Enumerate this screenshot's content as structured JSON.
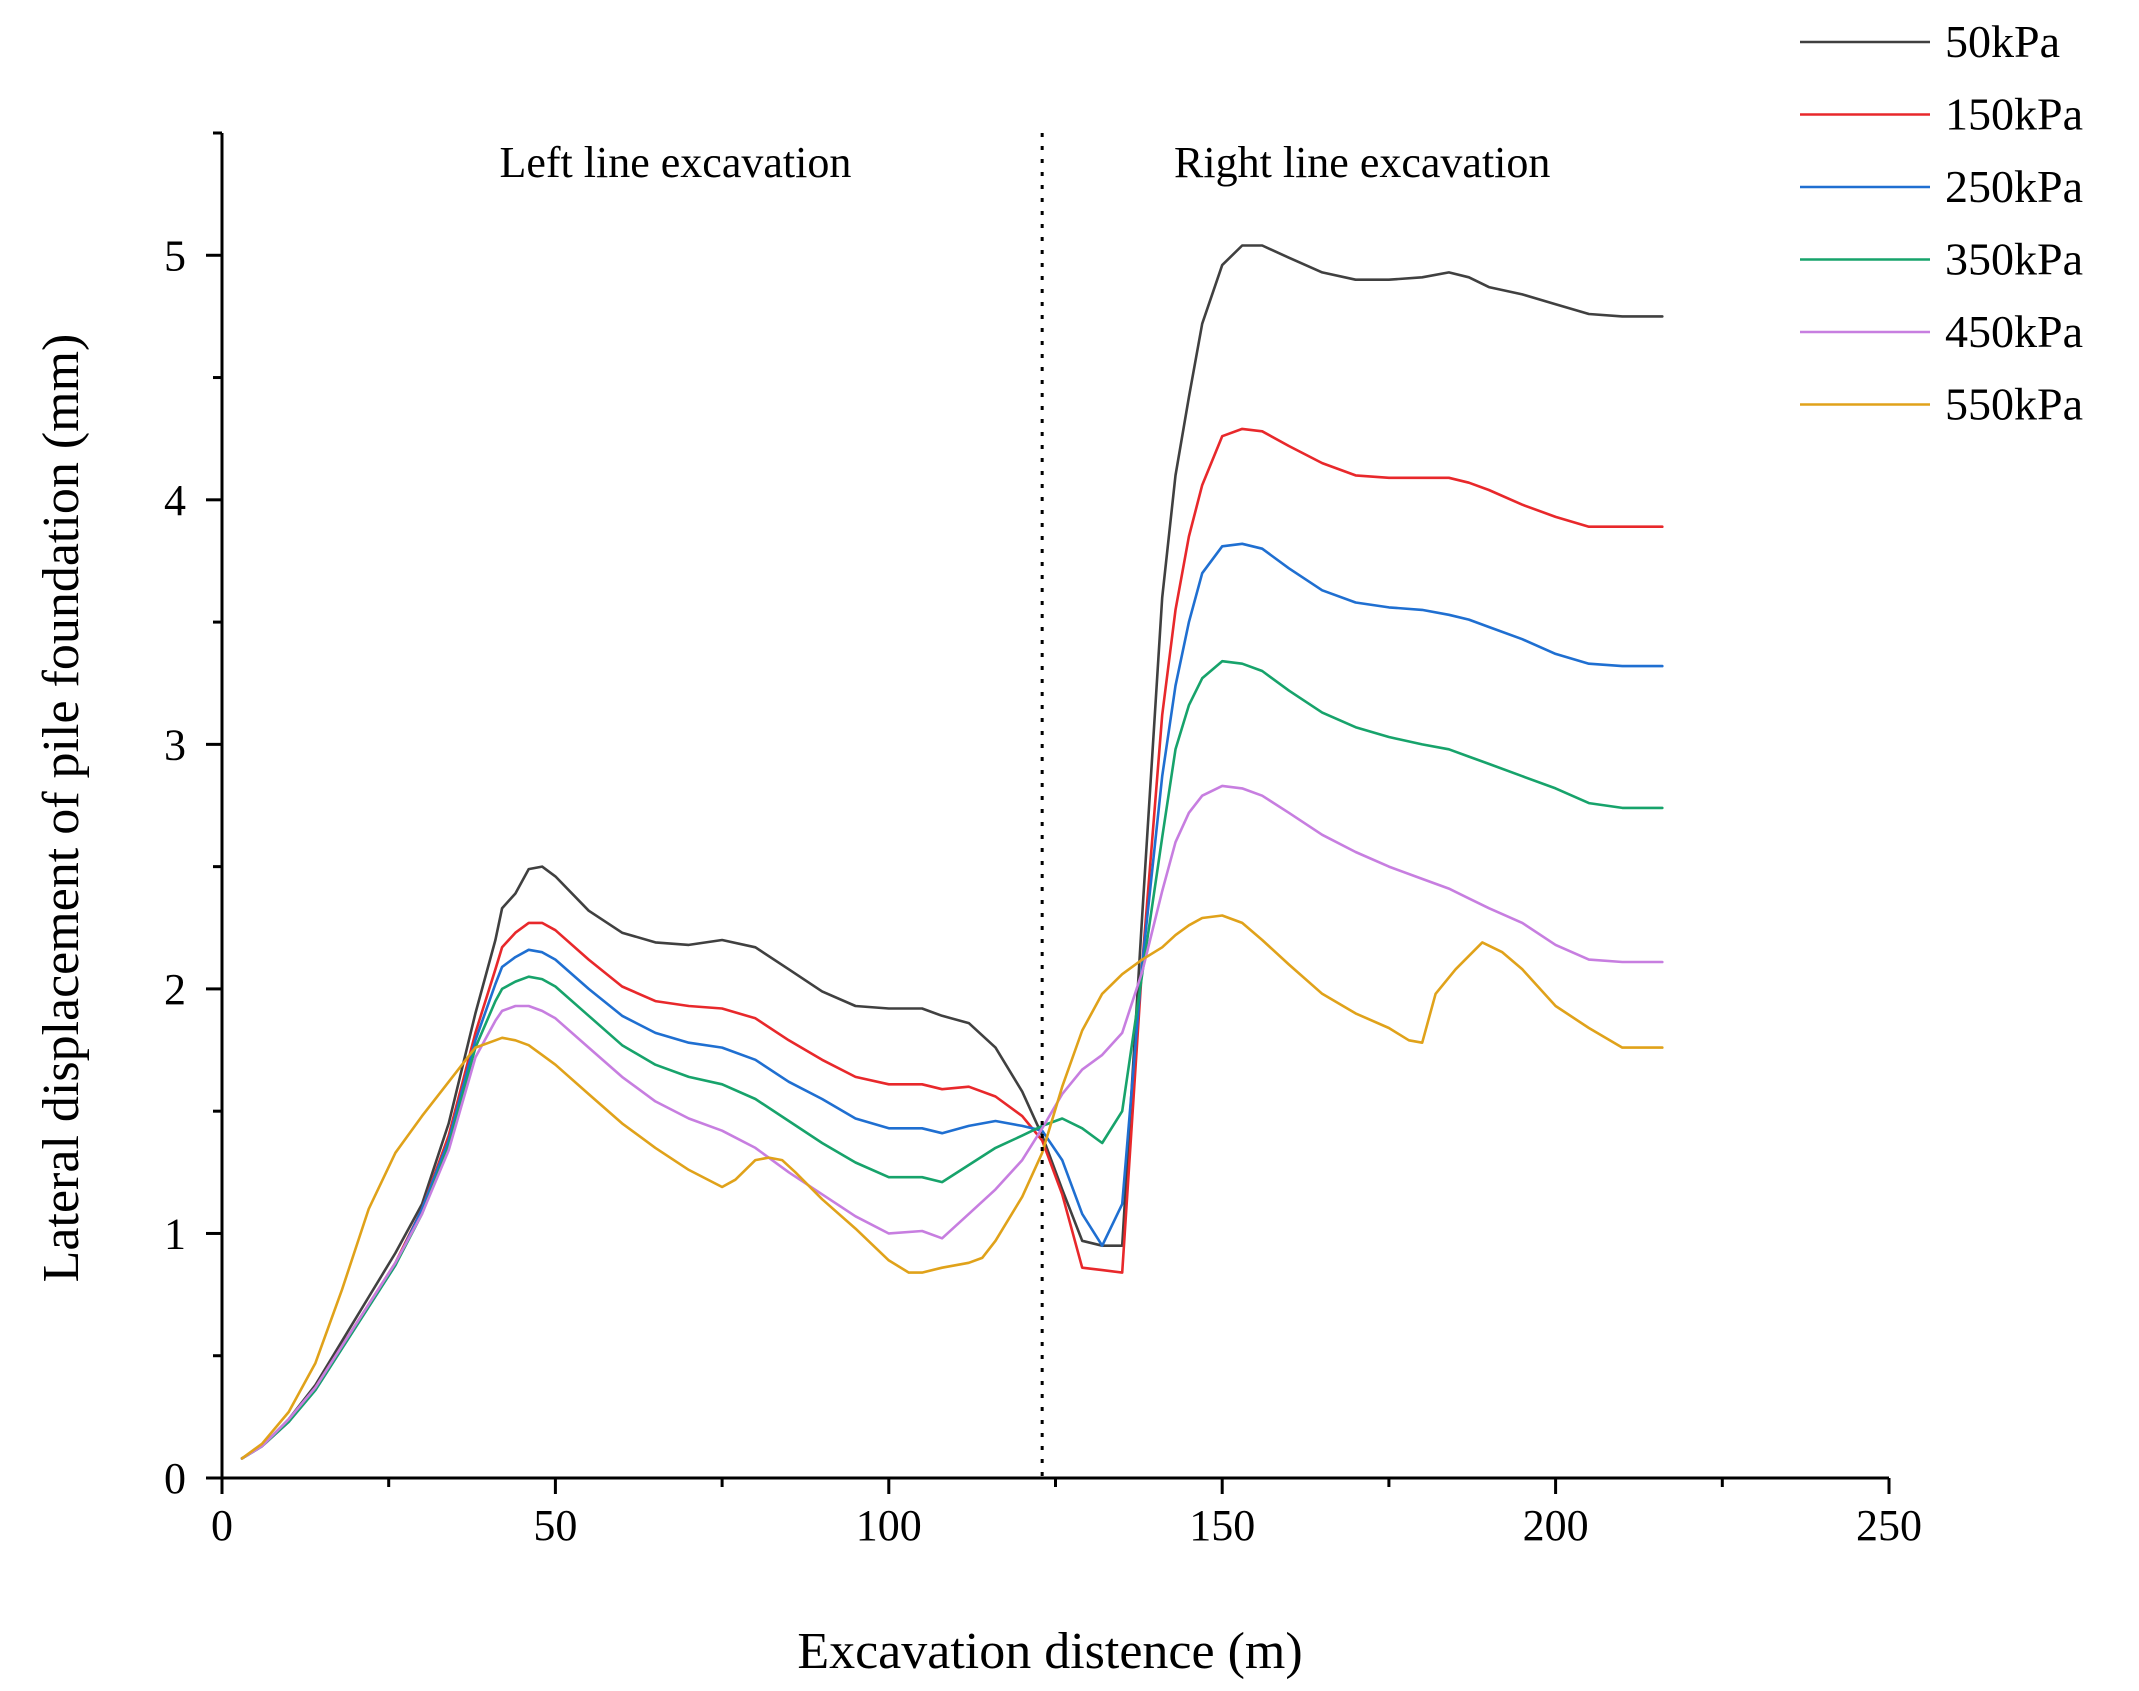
{
  "chart_data": {
    "type": "line",
    "title": "",
    "xlabel": "Excavation distence (m)",
    "ylabel": "Lateral displacement of pile foundation (mm)",
    "xlim": [
      0,
      250
    ],
    "ylim": [
      0,
      5.5
    ],
    "xticks": [
      0,
      50,
      100,
      150,
      200,
      250
    ],
    "xtick_labels": [
      "0",
      "50",
      "100",
      "150",
      "200",
      "250"
    ],
    "yticks": [
      0,
      1,
      2,
      3,
      4,
      5
    ],
    "ytick_labels": [
      "0",
      "1",
      "2",
      "3",
      "4",
      "5"
    ],
    "x_minor_step": 25,
    "y_minor_step": 0.5,
    "divider_x": 123,
    "annotations": [
      {
        "text": "Left line excavation",
        "x": 68,
        "y": 5.32
      },
      {
        "text": "Right line excavation",
        "x": 171,
        "y": 5.32
      }
    ],
    "legend_position": "top-right",
    "series": [
      {
        "name": "50kPa",
        "color": "#404040",
        "x": [
          3,
          6,
          10,
          14,
          18,
          22,
          26,
          30,
          34,
          38,
          41,
          42,
          44,
          46,
          48,
          50,
          55,
          60,
          65,
          70,
          75,
          80,
          85,
          90,
          95,
          100,
          105,
          108,
          112,
          116,
          120,
          123,
          126,
          129,
          132,
          135,
          138,
          141,
          143,
          145,
          147,
          150,
          153,
          156,
          160,
          165,
          170,
          175,
          180,
          184,
          187,
          190,
          195,
          200,
          205,
          210,
          216
        ],
        "y": [
          0.08,
          0.13,
          0.24,
          0.38,
          0.56,
          0.74,
          0.92,
          1.12,
          1.45,
          1.9,
          2.2,
          2.33,
          2.39,
          2.49,
          2.5,
          2.46,
          2.32,
          2.23,
          2.19,
          2.18,
          2.2,
          2.17,
          2.08,
          1.99,
          1.93,
          1.92,
          1.92,
          1.89,
          1.86,
          1.76,
          1.58,
          1.4,
          1.18,
          0.97,
          0.95,
          0.95,
          2.3,
          3.6,
          4.1,
          4.42,
          4.72,
          4.96,
          5.04,
          5.04,
          4.99,
          4.93,
          4.9,
          4.9,
          4.91,
          4.93,
          4.91,
          4.87,
          4.84,
          4.8,
          4.76,
          4.75,
          4.75
        ]
      },
      {
        "name": "150kPa",
        "color": "#e8282b",
        "x": [
          3,
          6,
          10,
          14,
          18,
          22,
          26,
          30,
          34,
          38,
          41,
          42,
          44,
          46,
          48,
          50,
          55,
          60,
          65,
          70,
          75,
          80,
          85,
          90,
          95,
          100,
          105,
          108,
          112,
          116,
          120,
          123,
          126,
          129,
          132,
          135,
          138,
          141,
          143,
          145,
          147,
          150,
          153,
          156,
          160,
          165,
          170,
          175,
          180,
          184,
          187,
          190,
          195,
          200,
          205,
          210,
          216
        ],
        "y": [
          0.08,
          0.13,
          0.23,
          0.37,
          0.54,
          0.71,
          0.88,
          1.1,
          1.4,
          1.82,
          2.08,
          2.17,
          2.23,
          2.27,
          2.27,
          2.24,
          2.12,
          2.01,
          1.95,
          1.93,
          1.92,
          1.88,
          1.79,
          1.71,
          1.64,
          1.61,
          1.61,
          1.59,
          1.6,
          1.56,
          1.48,
          1.38,
          1.16,
          0.86,
          0.85,
          0.84,
          2.1,
          3.12,
          3.55,
          3.85,
          4.06,
          4.26,
          4.29,
          4.28,
          4.22,
          4.15,
          4.1,
          4.09,
          4.09,
          4.09,
          4.07,
          4.04,
          3.98,
          3.93,
          3.89,
          3.89,
          3.89
        ]
      },
      {
        "name": "250kPa",
        "color": "#1f6fd1",
        "x": [
          3,
          6,
          10,
          14,
          18,
          22,
          26,
          30,
          34,
          38,
          41,
          42,
          44,
          46,
          48,
          50,
          55,
          60,
          65,
          70,
          75,
          80,
          85,
          90,
          95,
          100,
          105,
          108,
          112,
          116,
          120,
          123,
          126,
          129,
          132,
          135,
          138,
          141,
          143,
          145,
          147,
          150,
          153,
          156,
          160,
          165,
          170,
          175,
          180,
          184,
          187,
          190,
          195,
          200,
          205,
          210,
          216
        ],
        "y": [
          0.08,
          0.13,
          0.23,
          0.36,
          0.53,
          0.7,
          0.87,
          1.1,
          1.38,
          1.79,
          2.02,
          2.09,
          2.13,
          2.16,
          2.15,
          2.12,
          2.0,
          1.89,
          1.82,
          1.78,
          1.76,
          1.71,
          1.62,
          1.55,
          1.47,
          1.43,
          1.43,
          1.41,
          1.44,
          1.46,
          1.44,
          1.42,
          1.3,
          1.08,
          0.95,
          1.12,
          2.1,
          2.87,
          3.24,
          3.5,
          3.7,
          3.81,
          3.82,
          3.8,
          3.72,
          3.63,
          3.58,
          3.56,
          3.55,
          3.53,
          3.51,
          3.48,
          3.43,
          3.37,
          3.33,
          3.32,
          3.32
        ]
      },
      {
        "name": "350kPa",
        "color": "#17a36b",
        "x": [
          3,
          6,
          10,
          14,
          18,
          22,
          26,
          30,
          34,
          38,
          41,
          42,
          44,
          46,
          48,
          50,
          55,
          60,
          65,
          70,
          75,
          80,
          85,
          90,
          95,
          100,
          105,
          108,
          112,
          116,
          120,
          123,
          126,
          129,
          132,
          135,
          138,
          141,
          143,
          145,
          147,
          150,
          153,
          156,
          160,
          165,
          170,
          175,
          180,
          184,
          187,
          190,
          195,
          200,
          205,
          210,
          216
        ],
        "y": [
          0.08,
          0.13,
          0.23,
          0.36,
          0.53,
          0.7,
          0.87,
          1.08,
          1.36,
          1.76,
          1.95,
          2.0,
          2.03,
          2.05,
          2.04,
          2.01,
          1.89,
          1.77,
          1.69,
          1.64,
          1.61,
          1.55,
          1.46,
          1.37,
          1.29,
          1.23,
          1.23,
          1.21,
          1.28,
          1.35,
          1.4,
          1.44,
          1.47,
          1.43,
          1.37,
          1.5,
          2.06,
          2.62,
          2.98,
          3.16,
          3.27,
          3.34,
          3.33,
          3.3,
          3.22,
          3.13,
          3.07,
          3.03,
          3.0,
          2.98,
          2.95,
          2.92,
          2.87,
          2.82,
          2.76,
          2.74,
          2.74
        ]
      },
      {
        "name": "450kPa",
        "color": "#c77ee0",
        "x": [
          3,
          6,
          10,
          14,
          18,
          22,
          26,
          30,
          34,
          38,
          41,
          42,
          44,
          46,
          48,
          50,
          55,
          60,
          65,
          70,
          75,
          80,
          85,
          90,
          95,
          100,
          105,
          108,
          112,
          116,
          120,
          123,
          126,
          129,
          132,
          135,
          138,
          141,
          143,
          145,
          147,
          150,
          153,
          156,
          160,
          165,
          170,
          175,
          180,
          184,
          187,
          190,
          195,
          200,
          205,
          210,
          216
        ],
        "y": [
          0.08,
          0.13,
          0.24,
          0.37,
          0.54,
          0.71,
          0.88,
          1.08,
          1.34,
          1.72,
          1.87,
          1.91,
          1.93,
          1.93,
          1.91,
          1.88,
          1.76,
          1.64,
          1.54,
          1.47,
          1.42,
          1.35,
          1.25,
          1.16,
          1.07,
          1.0,
          1.01,
          0.98,
          1.08,
          1.18,
          1.3,
          1.43,
          1.57,
          1.67,
          1.73,
          1.82,
          2.07,
          2.4,
          2.6,
          2.72,
          2.79,
          2.83,
          2.82,
          2.79,
          2.72,
          2.63,
          2.56,
          2.5,
          2.45,
          2.41,
          2.37,
          2.33,
          2.27,
          2.18,
          2.12,
          2.11,
          2.11
        ]
      },
      {
        "name": "550kPa",
        "color": "#e0a21a",
        "x": [
          3,
          6,
          10,
          14,
          18,
          22,
          26,
          30,
          34,
          38,
          41,
          42,
          44,
          46,
          48,
          50,
          55,
          60,
          65,
          70,
          75,
          77,
          80,
          82,
          84,
          86,
          90,
          95,
          100,
          103,
          105,
          108,
          112,
          114,
          116,
          120,
          123,
          126,
          129,
          132,
          135,
          138,
          141,
          143,
          145,
          147,
          150,
          153,
          156,
          160,
          165,
          170,
          175,
          178,
          180,
          182,
          185,
          189,
          192,
          195,
          200,
          205,
          210,
          216
        ],
        "y": [
          0.08,
          0.14,
          0.27,
          0.47,
          0.77,
          1.1,
          1.33,
          1.48,
          1.62,
          1.76,
          1.79,
          1.8,
          1.79,
          1.77,
          1.73,
          1.69,
          1.57,
          1.45,
          1.35,
          1.26,
          1.19,
          1.22,
          1.3,
          1.31,
          1.3,
          1.25,
          1.14,
          1.02,
          0.89,
          0.84,
          0.84,
          0.86,
          0.88,
          0.9,
          0.97,
          1.15,
          1.33,
          1.6,
          1.83,
          1.98,
          2.06,
          2.12,
          2.17,
          2.22,
          2.26,
          2.29,
          2.3,
          2.27,
          2.2,
          2.1,
          1.98,
          1.9,
          1.84,
          1.79,
          1.78,
          1.98,
          2.08,
          2.19,
          2.15,
          2.08,
          1.93,
          1.84,
          1.76,
          1.76
        ]
      }
    ]
  }
}
